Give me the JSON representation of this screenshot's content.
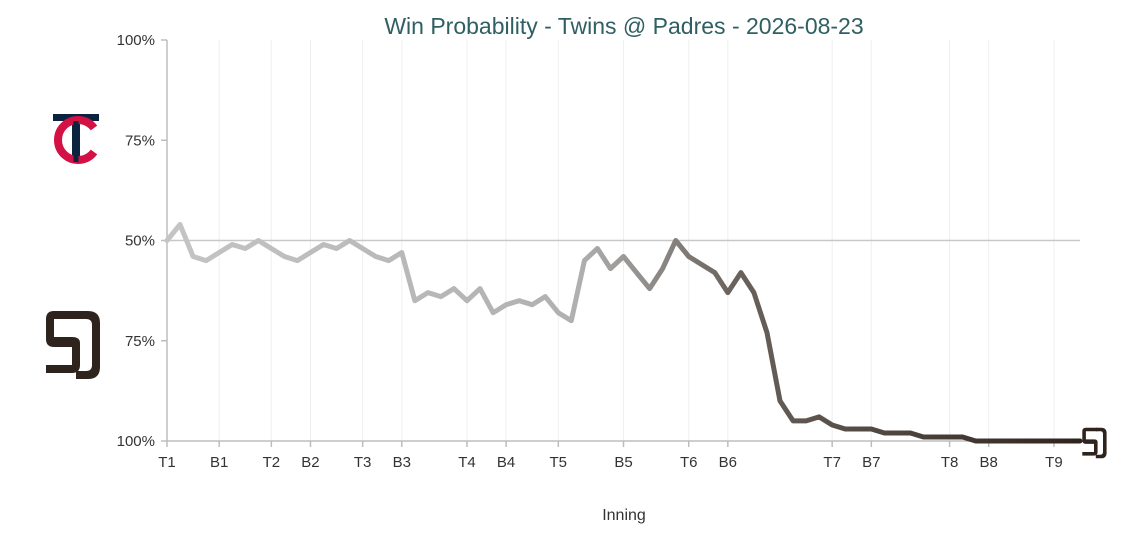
{
  "chart_data": {
    "type": "line",
    "title": "Win Probability - Twins @ Padres - 2026-08-23",
    "xlabel": "Inning",
    "ylabel": "",
    "y_tick_labels": [
      "100%",
      "75%",
      "50%",
      "75%",
      "100%"
    ],
    "y_scale": "home team win probability (0 = Twins certain, 50 = even, 100 = Padres certain)",
    "ylim": [
      0,
      100
    ],
    "x_tick_labels": [
      "T1",
      "B1",
      "T2",
      "B2",
      "T3",
      "B3",
      "T4",
      "B4",
      "T5",
      "B5",
      "T6",
      "B6",
      "T7",
      "B7",
      "T8",
      "B8",
      "T9"
    ],
    "x_tick_positions": [
      0,
      4,
      8,
      11,
      15,
      18,
      23,
      26,
      30,
      35,
      40,
      43,
      51,
      54,
      60,
      63,
      68
    ],
    "grid": "vertical lines at inning marks, horizontal line at 50%",
    "colors": {
      "start": "#c4c4c4",
      "end": "#2f241d",
      "title": "#2f5f63"
    },
    "series": [
      {
        "x": [
          0,
          1,
          2,
          3,
          4,
          5,
          6,
          7,
          8,
          9,
          10,
          11,
          12,
          13,
          14,
          15,
          16,
          17,
          18,
          19,
          20,
          21,
          22,
          23,
          24,
          25,
          26,
          27,
          28,
          29,
          30,
          31,
          32,
          33,
          34,
          35,
          36,
          37,
          38,
          39,
          40,
          41,
          42,
          43,
          44,
          45,
          46,
          47,
          48,
          49,
          50,
          51,
          52,
          53,
          54,
          55,
          56,
          57,
          58,
          59,
          60,
          61,
          62,
          63,
          64,
          65,
          66,
          67,
          68,
          69,
          70
        ],
        "y": [
          50,
          46,
          54,
          55,
          53,
          51,
          52,
          50,
          52,
          54,
          55,
          53,
          51,
          52,
          50,
          52,
          54,
          55,
          53,
          65,
          63,
          64,
          62,
          65,
          62,
          68,
          66,
          65,
          66,
          64,
          68,
          70,
          55,
          52,
          57,
          54,
          58,
          62,
          57,
          50,
          54,
          56,
          58,
          63,
          58,
          63,
          73,
          90,
          95,
          95,
          94,
          96,
          97,
          97,
          97,
          98,
          98,
          98,
          99,
          99,
          99,
          99,
          100,
          100,
          100,
          100,
          100,
          100,
          100,
          100,
          100
        ]
      }
    ],
    "teams": {
      "away": {
        "name": "Twins",
        "logo": "twins-tc-logo"
      },
      "home": {
        "name": "Padres",
        "logo": "padres-sd-logo"
      }
    }
  }
}
